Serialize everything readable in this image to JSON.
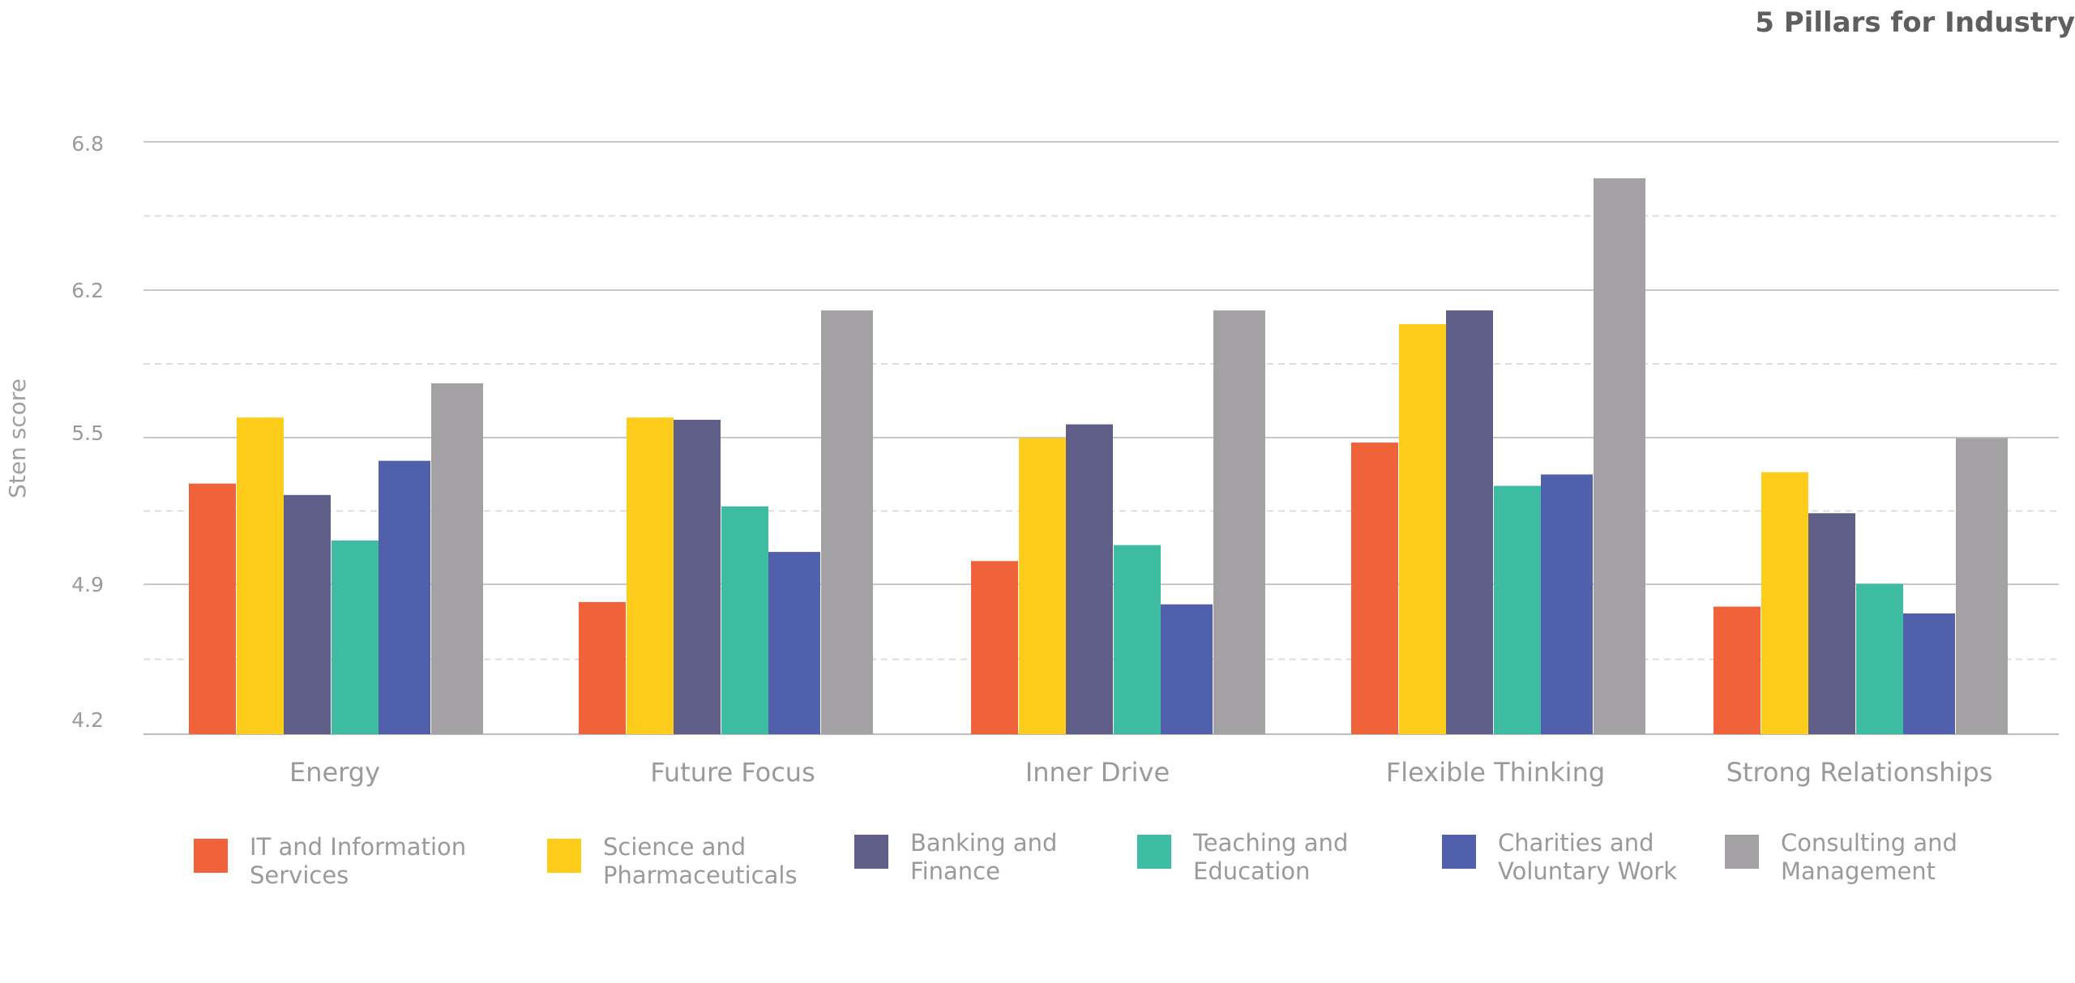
{
  "title": "5 Pillars for Industry",
  "chart_data": {
    "type": "bar",
    "title": "5 Pillars for Industry",
    "xlabel": "",
    "ylabel": "Sten score",
    "ylim": [
      4.2,
      6.8
    ],
    "yticks": [
      "6.8",
      "6.2",
      "5.5",
      "4.9",
      "4.2"
    ],
    "grid": true,
    "legend_position": "bottom",
    "categories": [
      "Energy",
      "Future Focus",
      "Inner Drive",
      "Flexible Thinking",
      "Strong Relationships"
    ],
    "series": [
      {
        "name": "IT and Information Services",
        "color": "#F0623A",
        "values": [
          5.3,
          4.78,
          4.96,
          5.48,
          4.76
        ]
      },
      {
        "name": "Science and Pharmaceuticals",
        "color": "#FECD1B",
        "values": [
          5.59,
          5.59,
          5.5,
          6.0,
          5.35
        ]
      },
      {
        "name": "Banking and Finance",
        "color": "#5F5E88",
        "values": [
          5.25,
          5.58,
          5.56,
          6.06,
          5.17
        ]
      },
      {
        "name": "Teaching and Education",
        "color": "#3DBCA2",
        "values": [
          5.05,
          5.2,
          5.03,
          5.29,
          4.86
        ]
      },
      {
        "name": "Charities and Voluntary Work",
        "color": "#5160AA",
        "values": [
          5.4,
          5.0,
          4.77,
          5.34,
          4.73
        ]
      },
      {
        "name": "Consulting and Management",
        "color": "#A3A1A4",
        "values": [
          5.74,
          6.06,
          6.06,
          6.64,
          5.5
        ]
      }
    ]
  }
}
